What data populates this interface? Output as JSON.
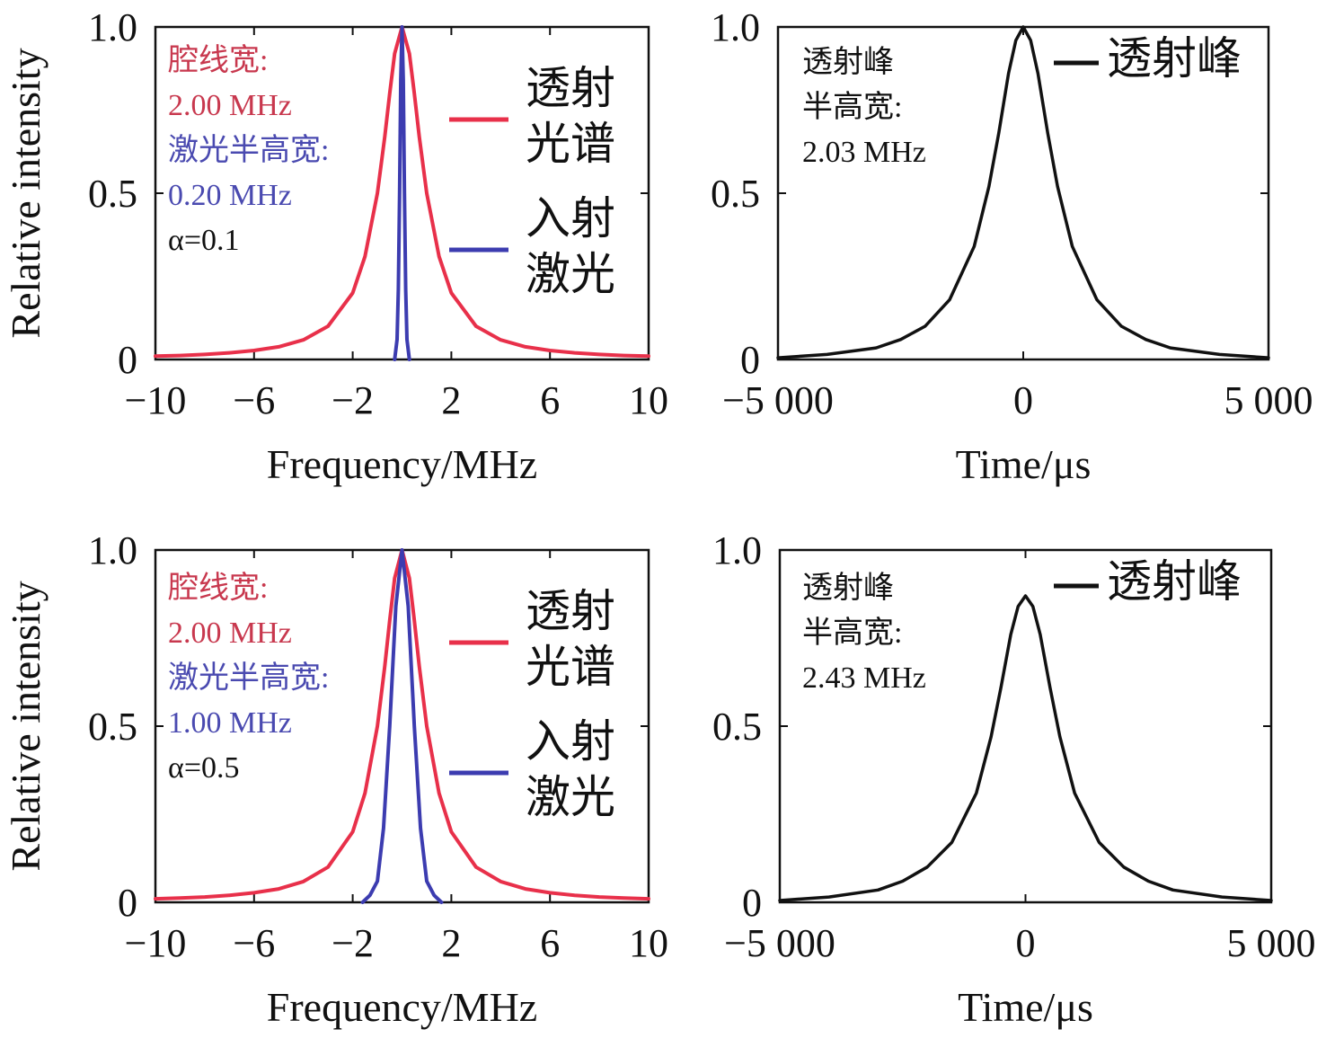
{
  "chart_data": [
    {
      "type": "line",
      "xlabel": "Frequency/MHz",
      "ylabel": "Relative intensity",
      "xlim": [
        -10,
        10
      ],
      "ylim": [
        0,
        1
      ],
      "xticks": [
        -10,
        -6,
        -2,
        2,
        6,
        10
      ],
      "xtick_labels": [
        "−10",
        "−6",
        "−2",
        "2",
        "6",
        "10"
      ],
      "yticks": [
        0,
        0.5,
        1
      ],
      "ytick_labels": [
        "0",
        "0.5",
        "1.0"
      ],
      "annotations": [
        {
          "text": "腔线宽:",
          "color": "#c8384e"
        },
        {
          "text": "2.00 MHz",
          "color": "#c8384e"
        },
        {
          "text": "激光半高宽:",
          "color": "#4a4ab0"
        },
        {
          "text": "0.20 MHz",
          "color": "#4a4ab0"
        },
        {
          "text": "α=0.1",
          "color": "#111111"
        }
      ],
      "legend": [
        {
          "lines": [
            "透射",
            "光谱"
          ],
          "color": "#e8304a"
        },
        {
          "lines": [
            "入射",
            "激光"
          ],
          "color": "#3c3cb0"
        }
      ],
      "series": [
        {
          "name": "透射光谱",
          "color": "#e8304a",
          "x": [
            -10,
            -9,
            -8,
            -7,
            -6,
            -5,
            -4,
            -3,
            -2,
            -1.5,
            -1,
            -0.7,
            -0.5,
            -0.3,
            0,
            0.3,
            0.5,
            0.7,
            1,
            1.5,
            2,
            3,
            4,
            5,
            6,
            7,
            8,
            9,
            10
          ],
          "y": [
            0.01,
            0.012,
            0.015,
            0.02,
            0.027,
            0.038,
            0.059,
            0.1,
            0.2,
            0.31,
            0.5,
            0.67,
            0.8,
            0.92,
            1.0,
            0.92,
            0.8,
            0.67,
            0.5,
            0.31,
            0.2,
            0.1,
            0.059,
            0.038,
            0.027,
            0.02,
            0.015,
            0.012,
            0.01
          ]
        },
        {
          "name": "入射激光",
          "color": "#3c3cb0",
          "x": [
            -0.3,
            -0.2,
            -0.15,
            -0.1,
            -0.05,
            0,
            0.05,
            0.1,
            0.15,
            0.2,
            0.3
          ],
          "y": [
            0.0,
            0.06,
            0.21,
            0.5,
            0.84,
            1.0,
            0.84,
            0.5,
            0.21,
            0.06,
            0.0
          ]
        }
      ]
    },
    {
      "type": "line",
      "xlabel": "Time/μs",
      "ylabel": "",
      "xlim": [
        -5000,
        5000
      ],
      "ylim": [
        0,
        1
      ],
      "xticks": [
        -5000,
        0,
        5000
      ],
      "xtick_labels": [
        "−5 000",
        "0",
        "5 000"
      ],
      "yticks": [
        0,
        0.5,
        1
      ],
      "ytick_labels": [
        "0",
        "0.5",
        "1.0"
      ],
      "annotations": [
        {
          "text": "透射峰",
          "color": "#111111"
        },
        {
          "text": "半高宽:",
          "color": "#111111"
        },
        {
          "text": "2.03 MHz",
          "color": "#111111"
        }
      ],
      "legend": [
        {
          "lines": [
            "透射峰"
          ],
          "color": "#111111"
        }
      ],
      "series": [
        {
          "name": "透射峰",
          "color": "#111111",
          "x": [
            -5000,
            -4000,
            -3000,
            -2500,
            -2000,
            -1500,
            -1000,
            -700,
            -500,
            -300,
            -150,
            0,
            150,
            300,
            500,
            700,
            1000,
            1500,
            2000,
            2500,
            3000,
            4000,
            5000
          ],
          "y": [
            0.005,
            0.015,
            0.035,
            0.06,
            0.1,
            0.18,
            0.34,
            0.52,
            0.68,
            0.86,
            0.96,
            1.0,
            0.96,
            0.86,
            0.68,
            0.52,
            0.34,
            0.18,
            0.1,
            0.06,
            0.035,
            0.015,
            0.005
          ]
        }
      ]
    },
    {
      "type": "line",
      "xlabel": "Frequency/MHz",
      "ylabel": "Relative intensity",
      "xlim": [
        -10,
        10
      ],
      "ylim": [
        0,
        1
      ],
      "xticks": [
        -10,
        -6,
        -2,
        2,
        6,
        10
      ],
      "xtick_labels": [
        "−10",
        "−6",
        "−2",
        "2",
        "6",
        "10"
      ],
      "yticks": [
        0,
        0.5,
        1
      ],
      "ytick_labels": [
        "0",
        "0.5",
        "1.0"
      ],
      "annotations": [
        {
          "text": "腔线宽:",
          "color": "#c8384e"
        },
        {
          "text": "2.00 MHz",
          "color": "#c8384e"
        },
        {
          "text": "激光半高宽:",
          "color": "#4a4ab0"
        },
        {
          "text": "1.00 MHz",
          "color": "#4a4ab0"
        },
        {
          "text": "α=0.5",
          "color": "#111111"
        }
      ],
      "legend": [
        {
          "lines": [
            "透射",
            "光谱"
          ],
          "color": "#e8304a"
        },
        {
          "lines": [
            "入射",
            "激光"
          ],
          "color": "#3c3cb0"
        }
      ],
      "series": [
        {
          "name": "透射光谱",
          "color": "#e8304a",
          "x": [
            -10,
            -9,
            -8,
            -7,
            -6,
            -5,
            -4,
            -3,
            -2,
            -1.5,
            -1,
            -0.7,
            -0.5,
            -0.3,
            0,
            0.3,
            0.5,
            0.7,
            1,
            1.5,
            2,
            3,
            4,
            5,
            6,
            7,
            8,
            9,
            10
          ],
          "y": [
            0.01,
            0.012,
            0.015,
            0.02,
            0.027,
            0.038,
            0.059,
            0.1,
            0.2,
            0.31,
            0.5,
            0.67,
            0.8,
            0.92,
            1.0,
            0.92,
            0.8,
            0.67,
            0.5,
            0.31,
            0.2,
            0.1,
            0.059,
            0.038,
            0.027,
            0.02,
            0.015,
            0.012,
            0.01
          ]
        },
        {
          "name": "入射激光",
          "color": "#3c3cb0",
          "x": [
            -1.6,
            -1.3,
            -1.0,
            -0.75,
            -0.5,
            -0.25,
            0,
            0.25,
            0.5,
            0.75,
            1.0,
            1.3,
            1.6
          ],
          "y": [
            0.0,
            0.02,
            0.06,
            0.21,
            0.5,
            0.84,
            1.0,
            0.84,
            0.5,
            0.21,
            0.06,
            0.02,
            0.0
          ]
        }
      ]
    },
    {
      "type": "line",
      "xlabel": "Time/μs",
      "ylabel": "",
      "xlim": [
        -5000,
        5000
      ],
      "ylim": [
        0,
        1
      ],
      "xticks": [
        -5000,
        0,
        5000
      ],
      "xtick_labels": [
        "−5 000",
        "0",
        "5 000"
      ],
      "yticks": [
        0,
        0.5,
        1
      ],
      "ytick_labels": [
        "0",
        "0.5",
        "1.0"
      ],
      "annotations": [
        {
          "text": "透射峰",
          "color": "#111111"
        },
        {
          "text": "半高宽:",
          "color": "#111111"
        },
        {
          "text": "2.43 MHz",
          "color": "#111111"
        }
      ],
      "legend": [
        {
          "lines": [
            "透射峰"
          ],
          "color": "#111111"
        }
      ],
      "series": [
        {
          "name": "透射峰",
          "color": "#111111",
          "x": [
            -5000,
            -4000,
            -3000,
            -2500,
            -2000,
            -1500,
            -1000,
            -700,
            -500,
            -300,
            -150,
            0,
            150,
            300,
            500,
            700,
            1000,
            1500,
            2000,
            2500,
            3000,
            4000,
            5000
          ],
          "y": [
            0.005,
            0.015,
            0.035,
            0.06,
            0.1,
            0.17,
            0.31,
            0.47,
            0.61,
            0.76,
            0.84,
            0.87,
            0.84,
            0.76,
            0.61,
            0.47,
            0.31,
            0.17,
            0.1,
            0.06,
            0.035,
            0.015,
            0.005
          ]
        }
      ]
    }
  ]
}
